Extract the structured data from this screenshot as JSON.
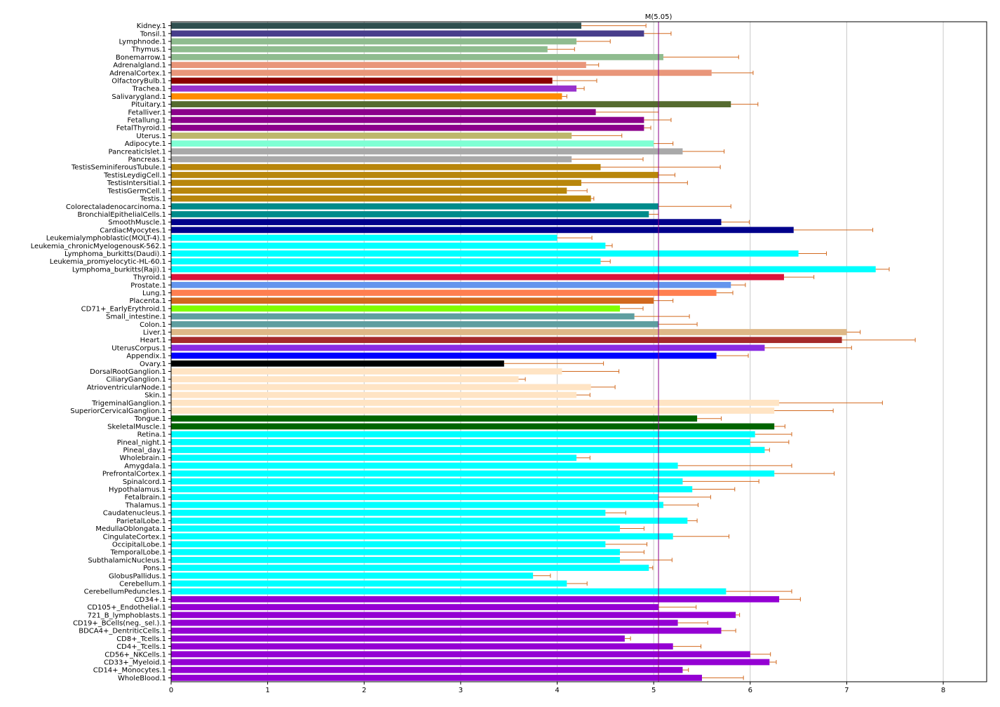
{
  "chart_data": {
    "type": "bar",
    "orientation": "horizontal",
    "grid": true,
    "xlim": [
      0,
      8.45
    ],
    "xticks": [
      0,
      1,
      2,
      3,
      4,
      5,
      6,
      7,
      8
    ],
    "errorbar_color": "#d2691e",
    "reference_line": {
      "label": "M(5.05)",
      "value": 5.05,
      "color": "#8b008b"
    },
    "categories": [
      "Kidney.1",
      "Tonsil.1",
      "Lymphnode.1",
      "Thymus.1",
      "Bonemarrow.1",
      "Adrenalgland.1",
      "AdrenalCortex.1",
      "OlfactoryBulb.1",
      "Trachea.1",
      "Salivarygland.1",
      "Pituitary.1",
      "Fetalliver.1",
      "Fetallung.1",
      "FetalThyroid.1",
      "Uterus.1",
      "Adipocyte.1",
      "PancreaticIslet.1",
      "Pancreas.1",
      "TestisSeminiferousTubule.1",
      "TestisLeydigCell.1",
      "TestisIntersitial.1",
      "TestisGermCell.1",
      "Testis.1",
      "Colorectaladenocarcinoma.1",
      "BronchialEpithelialCells.1",
      "SmoothMuscle.1",
      "CardiacMyocytes.1",
      "Leukemialymphoblastic(MOLT-4).1",
      "Leukemia_chronicMyelogenousK-562.1",
      "Lymphoma_burkitts(Daudi).1",
      "Leukemia_promyelocytic-HL-60.1",
      "Lymphoma_burkitts(Raji).1",
      "Thyroid.1",
      "Prostate.1",
      "Lung.1",
      "Placenta.1",
      "CD71+_EarlyErythroid.1",
      "Small_intestine.1",
      "Colon.1",
      "Liver.1",
      "Heart.1",
      "UterusCorpus.1",
      "Appendix.1",
      "Ovary.1",
      "DorsalRootGanglion.1",
      "CiliaryGanglion.1",
      "AtrioventricularNode.1",
      "Skin.1",
      "TrigeminalGanglion.1",
      "SuperiorCervicalGanglion.1",
      "Tongue.1",
      "SkeletalMuscle.1",
      "Retina.1",
      "Pineal_night.1",
      "Pineal_day.1",
      "Wholebrain.1",
      "Amygdala.1",
      "PrefrontalCortex.1",
      "Spinalcord.1",
      "Hypothalamus.1",
      "Fetalbrain.1",
      "Thalamus.1",
      "Caudatenucleus.1",
      "ParietalLobe.1",
      "MedullaOblongata.1",
      "CingulateCortex.1",
      "OccipitalLobe.1",
      "TemporalLobe.1",
      "SubthalamicNucleus.1",
      "Pons.1",
      "GlobusPallidus.1",
      "Cerebellum.1",
      "CerebellumPeduncles.1",
      "CD34+.1",
      "CD105+_Endothelial.1",
      "721_B_lymphoblasts.1",
      "CD19+_BCells(neg._sel.).1",
      "BDCA4+_DentriticCells.1",
      "CD8+_Tcells.1",
      "CD4+_Tcells.1",
      "CD56+_NKCells.1",
      "CD33+_Myeloid.1",
      "CD14+_Monocytes.1",
      "WholeBlood.1"
    ],
    "values": [
      4.25,
      4.9,
      4.2,
      3.9,
      5.1,
      4.3,
      5.6,
      3.95,
      4.2,
      4.05,
      5.8,
      4.4,
      4.9,
      4.9,
      4.15,
      5.0,
      5.3,
      4.15,
      4.45,
      5.05,
      4.25,
      4.1,
      4.35,
      5.05,
      4.95,
      5.7,
      6.45,
      4.0,
      4.5,
      6.5,
      4.45,
      7.3,
      6.35,
      5.8,
      5.65,
      5.0,
      4.65,
      4.8,
      5.05,
      7.0,
      6.95,
      6.15,
      5.65,
      3.45,
      4.05,
      3.6,
      4.35,
      4.2,
      6.3,
      6.25,
      5.45,
      6.25,
      6.05,
      6.0,
      6.15,
      4.2,
      5.25,
      6.25,
      5.3,
      5.4,
      5.05,
      5.1,
      4.5,
      5.35,
      4.65,
      5.2,
      4.5,
      4.65,
      4.65,
      4.95,
      3.75,
      4.1,
      5.75,
      6.3,
      5.05,
      5.85,
      5.25,
      5.7,
      4.7,
      5.2,
      6.0,
      6.2,
      5.3,
      5.5
    ],
    "errors": [
      0.67,
      0.28,
      0.35,
      0.28,
      0.78,
      0.13,
      0.43,
      0.46,
      0.08,
      0.05,
      0.28,
      0.65,
      0.28,
      0.07,
      0.52,
      0.2,
      0.43,
      0.74,
      1.24,
      0.17,
      1.1,
      0.21,
      0.03,
      0.75,
      0.1,
      0.29,
      0.82,
      0.36,
      0.07,
      0.29,
      0.1,
      0.14,
      0.31,
      0.15,
      0.17,
      0.2,
      0.24,
      0.57,
      0.4,
      0.14,
      0.76,
      0.9,
      0.33,
      1.03,
      0.59,
      0.07,
      0.25,
      0.14,
      1.07,
      0.61,
      0.25,
      0.11,
      0.38,
      0.4,
      0.05,
      0.14,
      1.18,
      0.62,
      0.79,
      0.44,
      0.54,
      0.36,
      0.21,
      0.1,
      0.25,
      0.58,
      0.43,
      0.25,
      0.54,
      0.04,
      0.18,
      0.21,
      0.68,
      0.22,
      0.39,
      0.04,
      0.31,
      0.15,
      0.06,
      0.29,
      0.21,
      0.07,
      0.06,
      0.43
    ],
    "colors": [
      "#2f4f4f",
      "#483d8b",
      "#8fbc8f",
      "#8fbc8f",
      "#8fbc8f",
      "#e9967a",
      "#e9967a",
      "#8b0000",
      "#9932cc",
      "#ff8c00",
      "#556b2f",
      "#8b008b",
      "#8b008b",
      "#8b008b",
      "#bdb76b",
      "#7fffd4",
      "#a9a9a9",
      "#a9a9a9",
      "#b8860b",
      "#b8860b",
      "#b8860b",
      "#b8860b",
      "#b8860b",
      "#008b8b",
      "#008b8b",
      "#00008b",
      "#00008b",
      "#00ffff",
      "#00ffff",
      "#00ffff",
      "#00ffff",
      "#00ffff",
      "#dc143c",
      "#6495ed",
      "#ff7f50",
      "#d2691e",
      "#7fff00",
      "#5f9ea0",
      "#5f9ea0",
      "#deb887",
      "#a52a2a",
      "#8a2be2",
      "#0000ff",
      "#000000",
      "#ffe4c4",
      "#ffe4c4",
      "#ffe4c4",
      "#ffe4c4",
      "#ffe4c4",
      "#ffe4c4",
      "#006400",
      "#006400",
      "#00ffff",
      "#00ffff",
      "#00ffff",
      "#00ffff",
      "#00ffff",
      "#00ffff",
      "#00ffff",
      "#00ffff",
      "#00ffff",
      "#00ffff",
      "#00ffff",
      "#00ffff",
      "#00ffff",
      "#00ffff",
      "#00ffff",
      "#00ffff",
      "#00ffff",
      "#00ffff",
      "#00ffff",
      "#00ffff",
      "#00ffff",
      "#9400d3",
      "#9400d3",
      "#9400d3",
      "#9400d3",
      "#9400d3",
      "#9400d3",
      "#9400d3",
      "#9400d3",
      "#9400d3",
      "#9400d3",
      "#9400d3"
    ]
  }
}
